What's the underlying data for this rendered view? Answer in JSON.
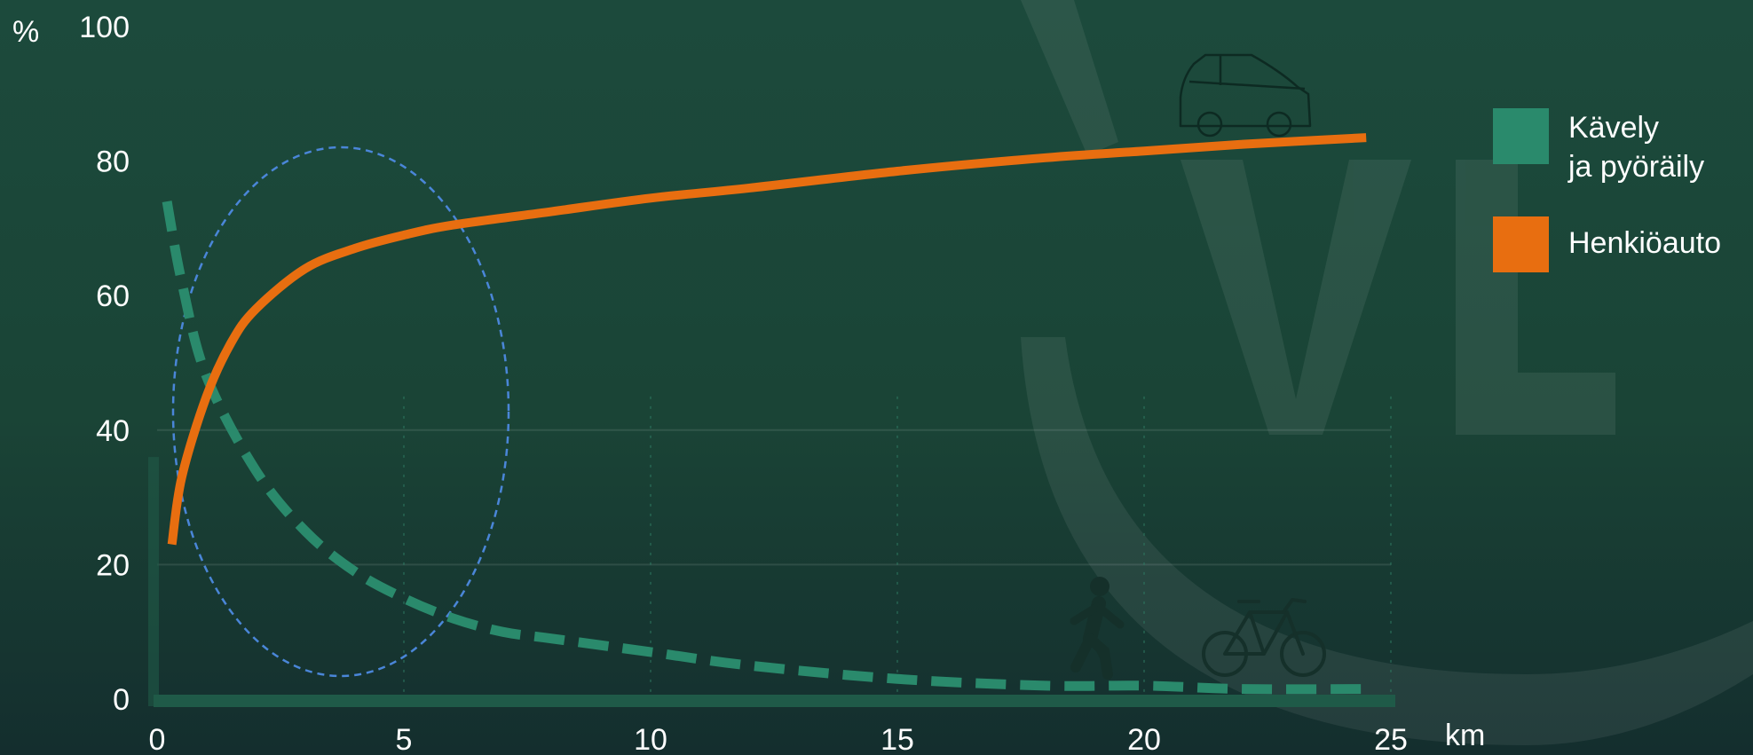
{
  "chart_data": {
    "type": "line",
    "xlabel": "km",
    "ylabel": "%",
    "xlim": [
      0,
      25
    ],
    "ylim": [
      0,
      100
    ],
    "xticks": [
      "0",
      "5",
      "10",
      "15",
      "20",
      "25"
    ],
    "yticks": [
      "0",
      "20",
      "40",
      "60",
      "80",
      "100"
    ],
    "legend_position": "right",
    "series": [
      {
        "name": "Kävely\nja pyöräily",
        "color": "#2a8a6c",
        "style": "dashed",
        "x": [
          0.2,
          0.5,
          1,
          2,
          3,
          4,
          5,
          6,
          7,
          8,
          10,
          12,
          15,
          18,
          20,
          22,
          24.5
        ],
        "y": [
          74,
          62,
          48,
          34,
          25,
          19,
          15,
          12,
          10,
          9,
          7,
          5,
          3,
          2,
          2,
          1.5,
          1.5
        ]
      },
      {
        "name": "Henkiöauto",
        "color": "#e86e10",
        "style": "solid",
        "x": [
          0.3,
          0.5,
          1,
          1.5,
          2,
          3,
          4,
          5,
          6,
          8,
          10,
          12,
          15,
          18,
          20,
          22,
          24.5
        ],
        "y": [
          23,
          33,
          45,
          53,
          58,
          64,
          67,
          69,
          70.5,
          72.5,
          74.5,
          76,
          78.5,
          80.5,
          81.5,
          82.5,
          83.5
        ]
      }
    ]
  },
  "icons": {
    "car": "car-icon",
    "walker": "walking-person-icon",
    "bicycle": "bicycle-icon",
    "ellipse": "dashed-ellipse-highlight"
  }
}
